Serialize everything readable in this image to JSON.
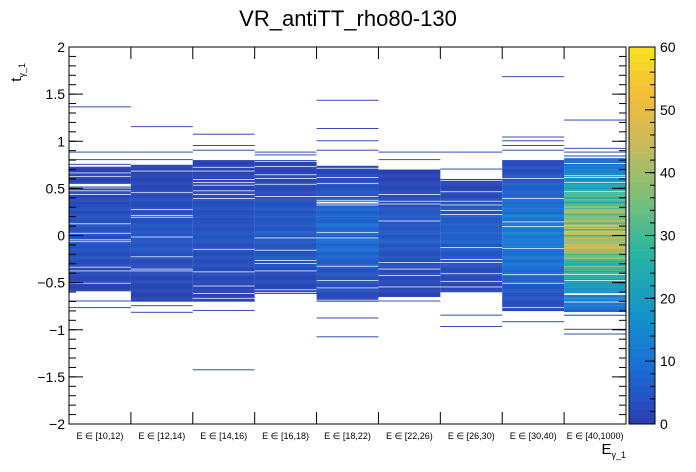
{
  "chart_data": {
    "type": "heatmap",
    "title": "VR_antiTT_rho80-130",
    "xlabel": "E",
    "xlabel_sub": "γ_1",
    "ylabel": "t",
    "ylabel_sub": "γ_1",
    "ylim": [
      -2,
      2
    ],
    "yticks": [
      -2,
      -1.5,
      -1,
      -0.5,
      0,
      0.5,
      1,
      1.5,
      2
    ],
    "ytick_labels": [
      "−2",
      "−1.5",
      "−1",
      "−0.5",
      "0",
      "0.5",
      "1",
      "1.5",
      "2"
    ],
    "categories": [
      "E ∈ [10,12)",
      "E ∈ [12,14)",
      "E ∈ [14,16)",
      "E ∈ [16,18)",
      "E ∈ [18,22)",
      "E ∈ [22,26)",
      "E ∈ [26,30)",
      "E ∈ [30,40)",
      "E ∈ [40,1000)"
    ],
    "zlim": [
      0,
      60
    ],
    "zticks": [
      0,
      10,
      20,
      30,
      40,
      50,
      60
    ],
    "ybin_width": 0.01,
    "core_range": [
      [
        -0.6,
        0.75
      ],
      [
        -0.7,
        0.75
      ],
      [
        -0.7,
        0.8
      ],
      [
        -0.6,
        0.8
      ],
      [
        -0.7,
        0.75
      ],
      [
        -0.65,
        0.7
      ],
      [
        -0.6,
        0.6
      ],
      [
        -0.8,
        0.8
      ],
      [
        -0.85,
        0.85
      ]
    ],
    "peak_counts": [
      4,
      4,
      4,
      5,
      8,
      5,
      6,
      12,
      40
    ],
    "outliers": [
      [
        1.36,
        0.88,
        0.8,
        0.75,
        0.7,
        -0.7,
        -0.77
      ],
      [
        1.15,
        0.88,
        0.8,
        -0.75,
        -0.82
      ],
      [
        1.07,
        0.95,
        0.9,
        -0.8,
        -1.43
      ],
      [
        0.88,
        0.85,
        -0.62
      ],
      [
        1.43,
        1.13,
        1.0,
        0.9,
        -0.88,
        -1.08
      ],
      [
        0.88,
        0.8,
        -0.65,
        -0.7
      ],
      [
        0.88,
        0.7,
        -0.85,
        -0.97
      ],
      [
        1.68,
        1.04,
        1.0,
        0.95,
        0.9,
        -0.92
      ],
      [
        1.22,
        0.92,
        0.88,
        -1.0,
        -1.05
      ]
    ]
  }
}
